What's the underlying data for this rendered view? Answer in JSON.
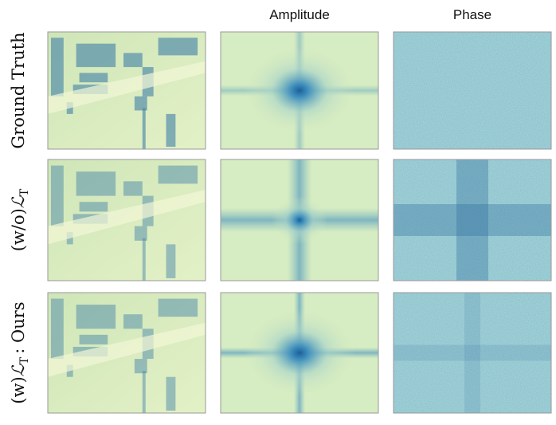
{
  "column_headers": [
    "Amplitude",
    "Phase"
  ],
  "rows": [
    {
      "label": "Ground Truth"
    },
    {
      "prefix": "(w/o)",
      "symbol": "ℒ",
      "subscript": "T"
    },
    {
      "prefix": "(w)",
      "symbol": "ℒ",
      "subscript": "T",
      "suffix": ": Ours"
    }
  ]
}
